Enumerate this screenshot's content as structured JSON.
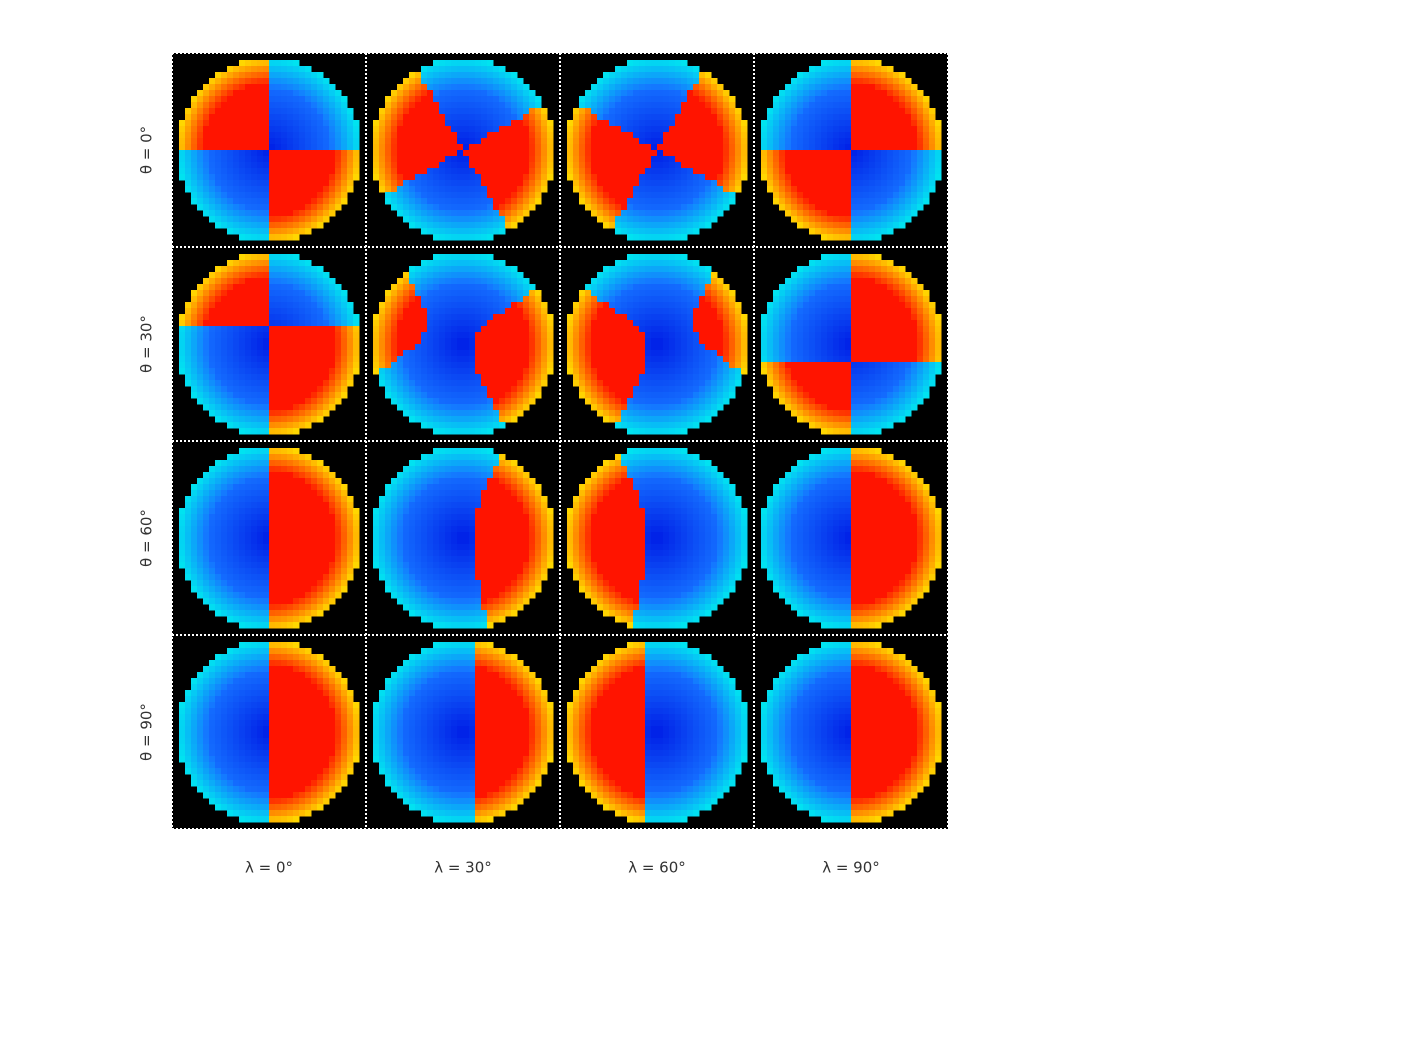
{
  "row_labels": [
    "θ = 0°",
    "θ = 30°",
    "θ = 60°",
    "θ = 90°"
  ],
  "column_labels": [
    "λ = 0°",
    "λ = 30°",
    "λ = 60°",
    "λ = 90°"
  ]
}
